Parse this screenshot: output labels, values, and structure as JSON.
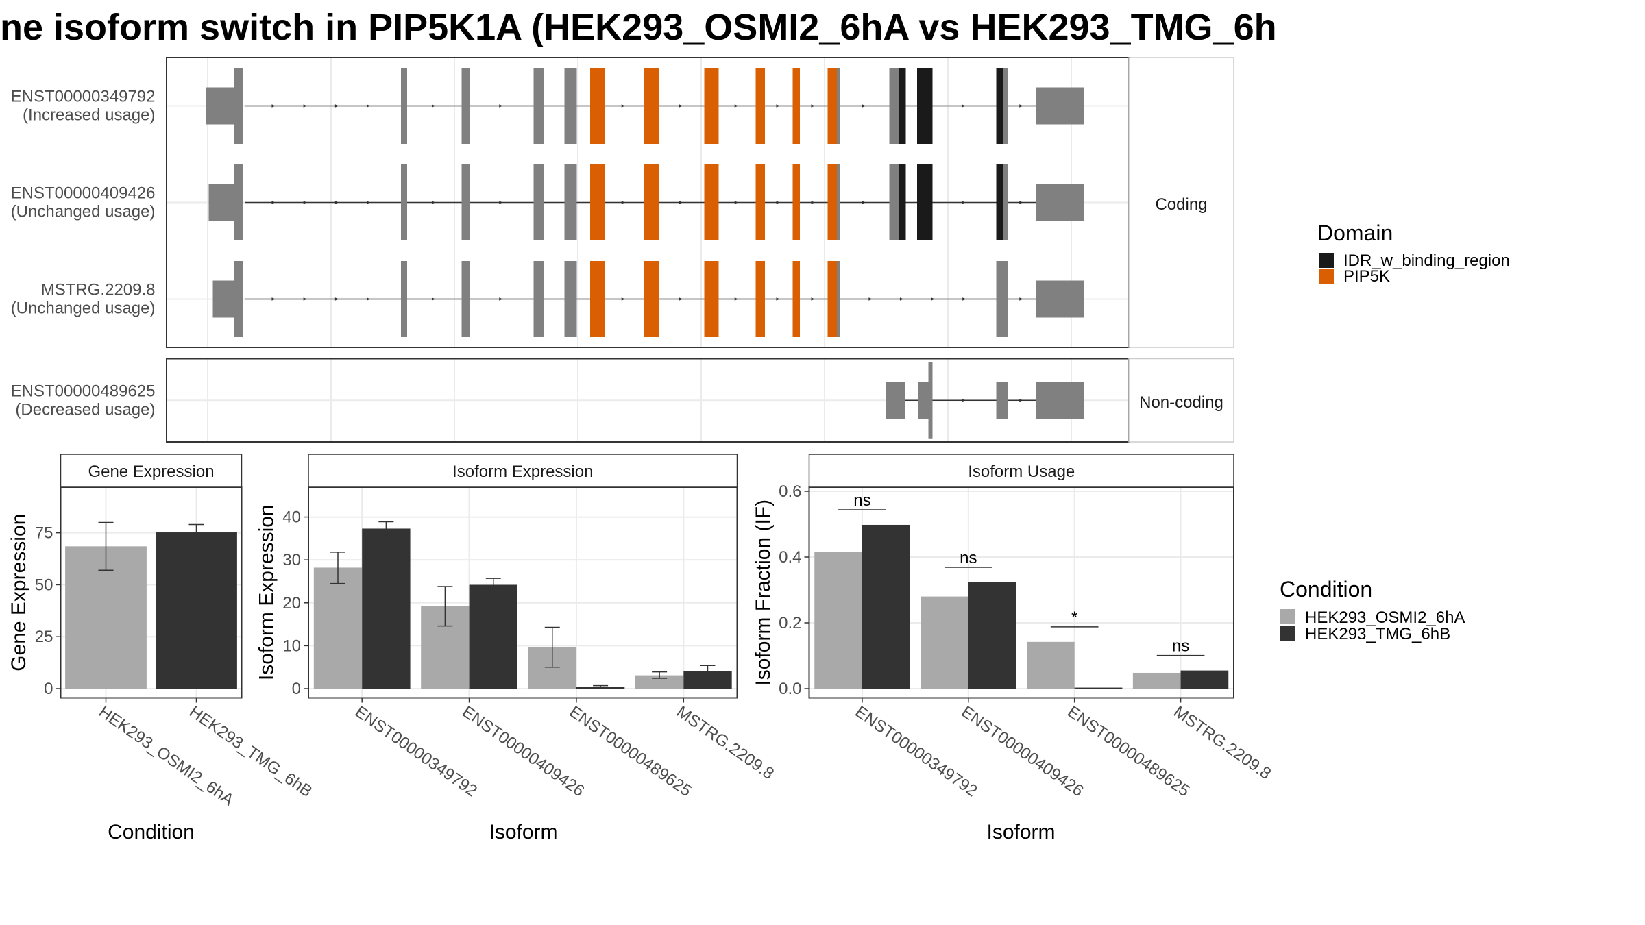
{
  "title": "ne isoform switch in PIP5K1A (HEK293_OSMI2_6hA vs HEK293_TMG_6h",
  "colors": {
    "exon": "#808080",
    "idr": "#1a1a1a",
    "pip5k": "#d95f02",
    "cond_a": "#a9a9a9",
    "cond_b": "#333333"
  },
  "structure": {
    "panels": [
      {
        "strip": "Coding",
        "tracks": [
          {
            "name": "ENST00000349792",
            "usage": "(Increased usage)",
            "intron": [
              238,
              1010
            ],
            "utr": [
              [
                200,
                232
              ],
              [
                1008,
                1054
              ]
            ],
            "cds": [
              [
                228,
                236
              ],
              [
                390,
                396
              ],
              [
                449,
                457
              ],
              [
                519,
                529
              ],
              [
                549,
                561
              ],
              [
                574,
                588
              ],
              [
                626,
                641
              ],
              [
                685,
                699
              ],
              [
                735,
                744
              ],
              [
                771,
                778
              ],
              [
                805,
                817
              ],
              [
                865,
                881
              ],
              [
                892,
                907
              ],
              [
                969,
                980
              ]
            ],
            "domains": [
              {
                "d": "pip5k",
                "range": [
                  574,
                  588
                ]
              },
              {
                "d": "pip5k",
                "range": [
                  626,
                  641
                ]
              },
              {
                "d": "pip5k",
                "range": [
                  685,
                  699
                ]
              },
              {
                "d": "pip5k",
                "range": [
                  735,
                  744
                ]
              },
              {
                "d": "pip5k",
                "range": [
                  771,
                  778
                ]
              },
              {
                "d": "pip5k",
                "range": [
                  805,
                  814
                ]
              },
              {
                "d": "idr",
                "range": [
                  874,
                  881
                ]
              },
              {
                "d": "idr",
                "range": [
                  892,
                  907
                ]
              },
              {
                "d": "idr",
                "range": [
                  969,
                  976
                ]
              }
            ]
          },
          {
            "name": "ENST00000409426",
            "usage": "(Unchanged usage)",
            "intron": [
              238,
              1010
            ],
            "utr": [
              [
                203,
                232
              ],
              [
                1008,
                1054
              ]
            ],
            "cds": [
              [
                228,
                236
              ],
              [
                390,
                396
              ],
              [
                449,
                457
              ],
              [
                519,
                529
              ],
              [
                549,
                561
              ],
              [
                574,
                588
              ],
              [
                626,
                641
              ],
              [
                685,
                699
              ],
              [
                735,
                744
              ],
              [
                771,
                778
              ],
              [
                805,
                817
              ],
              [
                865,
                881
              ],
              [
                892,
                907
              ],
              [
                969,
                980
              ]
            ],
            "domains": [
              {
                "d": "pip5k",
                "range": [
                  574,
                  588
                ]
              },
              {
                "d": "pip5k",
                "range": [
                  626,
                  641
                ]
              },
              {
                "d": "pip5k",
                "range": [
                  685,
                  699
                ]
              },
              {
                "d": "pip5k",
                "range": [
                  735,
                  744
                ]
              },
              {
                "d": "pip5k",
                "range": [
                  771,
                  778
                ]
              },
              {
                "d": "pip5k",
                "range": [
                  805,
                  814
                ]
              },
              {
                "d": "idr",
                "range": [
                  874,
                  881
                ]
              },
              {
                "d": "idr",
                "range": [
                  892,
                  907
                ]
              },
              {
                "d": "idr",
                "range": [
                  969,
                  976
                ]
              }
            ]
          },
          {
            "name": "MSTRG.2209.8",
            "usage": "(Unchanged usage)",
            "intron": [
              238,
              1010
            ],
            "utr": [
              [
                207,
                232
              ],
              [
                1008,
                1054
              ]
            ],
            "cds": [
              [
                228,
                236
              ],
              [
                390,
                396
              ],
              [
                449,
                457
              ],
              [
                519,
                529
              ],
              [
                549,
                561
              ],
              [
                574,
                588
              ],
              [
                626,
                641
              ],
              [
                685,
                699
              ],
              [
                735,
                744
              ],
              [
                771,
                778
              ],
              [
                805,
                817
              ],
              [
                969,
                980
              ]
            ],
            "domains": [
              {
                "d": "pip5k",
                "range": [
                  574,
                  588
                ]
              },
              {
                "d": "pip5k",
                "range": [
                  626,
                  641
                ]
              },
              {
                "d": "pip5k",
                "range": [
                  685,
                  699
                ]
              },
              {
                "d": "pip5k",
                "range": [
                  735,
                  744
                ]
              },
              {
                "d": "pip5k",
                "range": [
                  771,
                  778
                ]
              },
              {
                "d": "pip5k",
                "range": [
                  805,
                  814
                ]
              }
            ]
          }
        ]
      },
      {
        "strip": "Non-coding",
        "tracks": [
          {
            "name": "ENST00000489625",
            "usage": "(Decreased usage)",
            "intron": [
              880,
              1010
            ],
            "utr": [
              [
                862,
                880
              ],
              [
                893,
                906
              ],
              [
                969,
                980
              ],
              [
                1008,
                1054
              ]
            ],
            "cds": [
              [
                903,
                907
              ]
            ],
            "domains": []
          }
        ]
      }
    ]
  },
  "legend": {
    "domain_title": "Domain",
    "domain_items": [
      {
        "label": "IDR_w_binding_region",
        "color": "#1a1a1a"
      },
      {
        "label": "PIP5K",
        "color": "#d95f02"
      }
    ],
    "condition_title": "Condition",
    "condition_items": [
      {
        "label": "HEK293_OSMI2_6hA",
        "color": "#a9a9a9"
      },
      {
        "label": "HEK293_TMG_6hB",
        "color": "#333333"
      }
    ]
  },
  "chart_data": [
    {
      "type": "bar",
      "title": "Gene Expression",
      "xlabel": "Condition",
      "ylabel": "Gene Expression",
      "ylim": [
        0,
        95
      ],
      "yticks": [
        0,
        25,
        50,
        75
      ],
      "categories": [
        "HEK293_OSMI2_6hA",
        "HEK293_TMG_6hB"
      ],
      "series": [
        {
          "name": "HEK293_OSMI2_6hA",
          "values": [
            68.5,
            null
          ],
          "err_low": [
            57,
            null
          ],
          "err_high": [
            80,
            null
          ]
        },
        {
          "name": "HEK293_TMG_6hB",
          "values": [
            null,
            75.2
          ],
          "err_low": [
            null,
            71.5
          ],
          "err_high": [
            null,
            79
          ]
        }
      ]
    },
    {
      "type": "bar",
      "title": "Isoform Expression",
      "xlabel": "Isoform",
      "ylabel": "Isoform Expression",
      "ylim": [
        0,
        46
      ],
      "yticks": [
        0,
        10,
        20,
        30,
        40
      ],
      "categories": [
        "ENST00000349792",
        "ENST00000409426",
        "ENST00000489625",
        "MSTRG.2209.8"
      ],
      "series": [
        {
          "name": "HEK293_OSMI2_6hA",
          "values": [
            28.2,
            19.2,
            9.6,
            3.1
          ],
          "err_low": [
            24.5,
            14.6,
            5,
            2.4
          ],
          "err_high": [
            31.8,
            23.8,
            14.3,
            3.9
          ]
        },
        {
          "name": "HEK293_TMG_6hB",
          "values": [
            37.3,
            24.2,
            0.4,
            4.1
          ],
          "err_low": [
            35.6,
            22.6,
            0.1,
            2.8
          ],
          "err_high": [
            38.9,
            25.7,
            0.7,
            5.4
          ]
        }
      ]
    },
    {
      "type": "bar",
      "title": "Isoform Usage",
      "xlabel": "Isoform",
      "ylabel": "Isoform Fraction (IF)",
      "ylim": [
        0,
        0.6
      ],
      "yticks": [
        0.0,
        0.2,
        0.4,
        0.6
      ],
      "categories": [
        "ENST00000349792",
        "ENST00000409426",
        "ENST00000489625",
        "MSTRG.2209.8"
      ],
      "series": [
        {
          "name": "HEK293_OSMI2_6hA",
          "values": [
            0.415,
            0.28,
            0.142,
            0.048
          ]
        },
        {
          "name": "HEK293_TMG_6hB",
          "values": [
            0.498,
            0.323,
            0.003,
            0.055
          ]
        }
      ],
      "annotations": [
        "ns",
        "ns",
        "*",
        "ns"
      ]
    }
  ]
}
